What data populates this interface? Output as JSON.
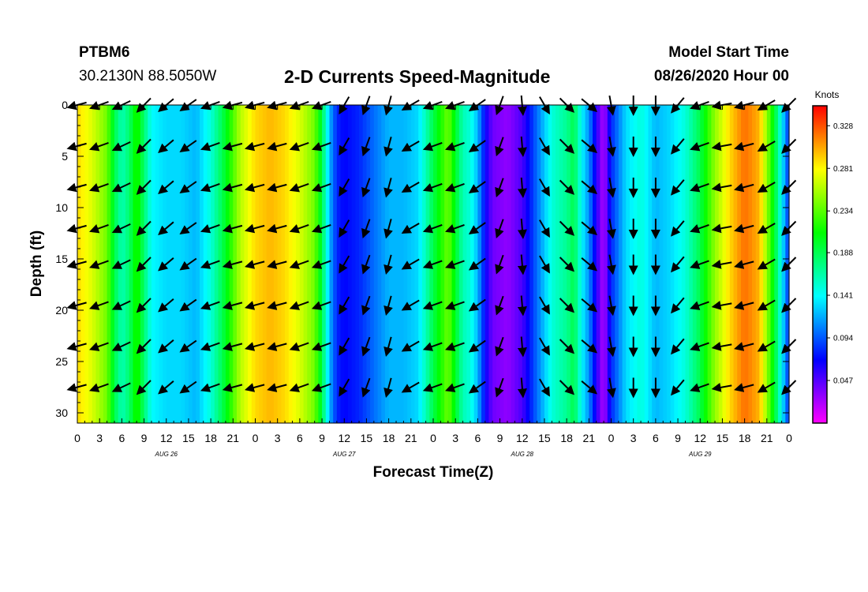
{
  "header": {
    "station": "PTBM6",
    "coords": "30.2130N 88.5050W",
    "title": "2-D Currents Speed-Magnitude",
    "model_start_label": "Model Start Time",
    "model_start_value": "08/26/2020 Hour 00"
  },
  "chart_data": {
    "type": "heatmap",
    "title": "2-D Currents Speed-Magnitude",
    "xlabel": "Forecast Time(Z)",
    "ylabel": "Depth (ft)",
    "x_unit": "hours since 08/26/2020 00Z",
    "xlim": [
      0,
      96
    ],
    "ylim": [
      31,
      0
    ],
    "y_inverted": true,
    "x_ticks": [
      0,
      3,
      6,
      9,
      12,
      15,
      18,
      21,
      24,
      27,
      30,
      33,
      36,
      39,
      42,
      45,
      48,
      51,
      54,
      57,
      60,
      63,
      66,
      69,
      72,
      75,
      78,
      81,
      84,
      87,
      90,
      93,
      96
    ],
    "x_tick_labels": [
      "0",
      "3",
      "6",
      "9",
      "12",
      "15",
      "18",
      "21",
      "0",
      "3",
      "6",
      "9",
      "12",
      "15",
      "18",
      "21",
      "0",
      "3",
      "6",
      "9",
      "12",
      "15",
      "18",
      "21",
      "0",
      "3",
      "6",
      "9",
      "12",
      "15",
      "18",
      "21",
      "0"
    ],
    "y_ticks": [
      0,
      5,
      10,
      15,
      20,
      25,
      30
    ],
    "y_tick_labels": [
      "0",
      "5",
      "10",
      "15",
      "20",
      "25",
      "30"
    ],
    "day_labels": [
      {
        "x": 12,
        "label": "AUG 26"
      },
      {
        "x": 36,
        "label": "AUG 27"
      },
      {
        "x": 60,
        "label": "AUG 28"
      },
      {
        "x": 84,
        "label": "AUG 29"
      }
    ],
    "colorbar": {
      "title": "Knots",
      "min": 0.0,
      "max": 0.35,
      "tick_values": [
        0.047,
        0.094,
        0.141,
        0.188,
        0.234,
        0.281,
        0.328
      ],
      "tick_labels": [
        "0.047",
        "0.094",
        "0.141",
        "0.188",
        "0.234",
        "0.281",
        "0.328"
      ]
    },
    "speed_profile": {
      "description_units": "knots, depth-averaged speed vs forecast hour",
      "hours": [
        0,
        2,
        4,
        5,
        6,
        7,
        8,
        9,
        10,
        12,
        14,
        16,
        18,
        20,
        22,
        24,
        26,
        28,
        30,
        32,
        33,
        34,
        35,
        36,
        38,
        40,
        42,
        44,
        46,
        47,
        48,
        50,
        51,
        52,
        53,
        54,
        55,
        56,
        58,
        60,
        62,
        64,
        66,
        67,
        68,
        69,
        70,
        71,
        72,
        74,
        76,
        78,
        80,
        82,
        84,
        86,
        88,
        90,
        92,
        93,
        94,
        95,
        96
      ],
      "values": [
        0.29,
        0.27,
        0.24,
        0.19,
        0.16,
        0.18,
        0.22,
        0.18,
        0.14,
        0.13,
        0.13,
        0.12,
        0.15,
        0.2,
        0.26,
        0.29,
        0.3,
        0.29,
        0.27,
        0.24,
        0.19,
        0.12,
        0.08,
        0.07,
        0.08,
        0.1,
        0.12,
        0.12,
        0.13,
        0.16,
        0.19,
        0.24,
        0.2,
        0.16,
        0.15,
        0.12,
        0.07,
        0.04,
        0.03,
        0.05,
        0.1,
        0.15,
        0.17,
        0.19,
        0.14,
        0.11,
        0.06,
        0.02,
        0.08,
        0.13,
        0.15,
        0.12,
        0.13,
        0.15,
        0.19,
        0.25,
        0.29,
        0.32,
        0.3,
        0.25,
        0.2,
        0.14,
        0.08
      ]
    },
    "vector_rows": [
      0,
      4,
      8,
      12,
      15.5,
      19.5,
      23.5,
      27.5
    ],
    "vector_hours": [
      0,
      3,
      6,
      9,
      12,
      15,
      18,
      21,
      24,
      27,
      30,
      33,
      36,
      39,
      42,
      45,
      48,
      51,
      54,
      57,
      60,
      63,
      66,
      69,
      72,
      75,
      78,
      81,
      84,
      87,
      90,
      93,
      96
    ],
    "vector_direction_deg": [
      195,
      200,
      205,
      225,
      220,
      215,
      200,
      195,
      195,
      195,
      200,
      200,
      240,
      250,
      255,
      210,
      200,
      200,
      215,
      250,
      275,
      300,
      315,
      320,
      280,
      270,
      270,
      230,
      200,
      190,
      195,
      210,
      225
    ]
  }
}
